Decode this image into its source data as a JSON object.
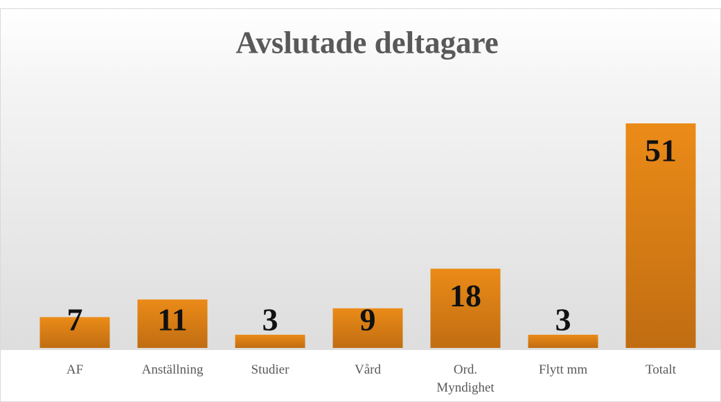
{
  "chart_data": {
    "type": "bar",
    "title": "Avslutade deltagare",
    "categories": [
      "AF",
      "Anställning",
      "Studier",
      "Vård",
      "Ord. Myndighet",
      "Flytt mm",
      "Totalt"
    ],
    "values": [
      7,
      11,
      3,
      9,
      18,
      3,
      51
    ],
    "color": "#e0821a",
    "grid": false
  }
}
